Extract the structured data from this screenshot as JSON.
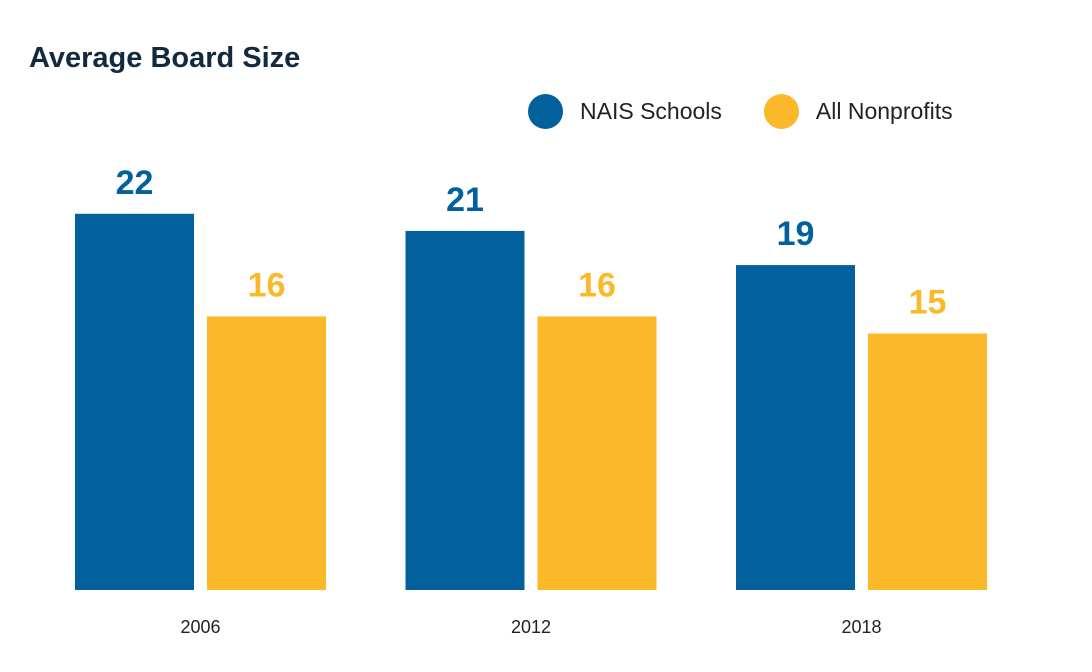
{
  "chart_data": {
    "type": "bar",
    "title": "Average Board Size",
    "xlabel": "",
    "ylabel": "",
    "categories": [
      "2006",
      "2012",
      "2018"
    ],
    "series": [
      {
        "name": "NAIS Schools",
        "color": "#02619d",
        "values": [
          22,
          21,
          19
        ]
      },
      {
        "name": "All Nonprofits",
        "color": "#fbb829",
        "values": [
          16,
          16,
          15
        ]
      }
    ],
    "ylim": [
      0,
      22
    ],
    "grid": false,
    "legend_position": "top-right",
    "data_labels": true
  }
}
